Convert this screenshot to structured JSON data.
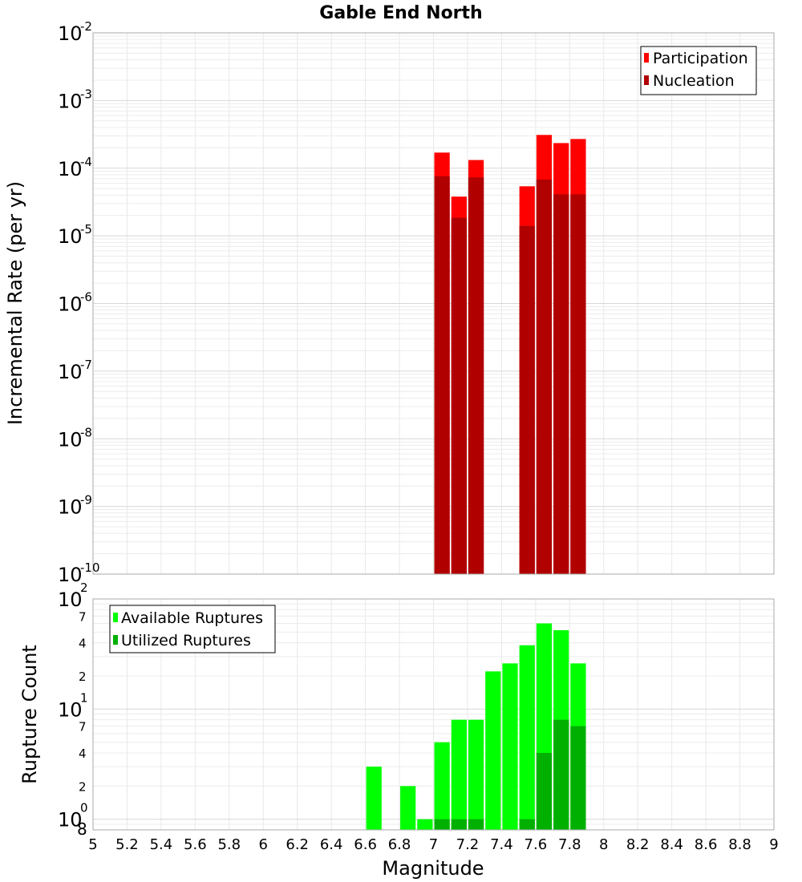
{
  "chart_data": [
    {
      "type": "bar",
      "title": "Gable End North",
      "xlabel": "",
      "ylabel": "Incremental Rate (per yr)",
      "yscale": "log",
      "ylim": [
        1e-10,
        0.01
      ],
      "xlim": [
        5,
        9
      ],
      "bin_width": 0.1,
      "y_tick_base": "10",
      "y_tick_exponents": [
        "-10",
        "-9",
        "-8",
        "-7",
        "-6",
        "-5",
        "-4",
        "-3",
        "-2"
      ],
      "grid": true,
      "legend": "top-right",
      "x": [
        7.05,
        7.15,
        7.25,
        7.55,
        7.65,
        7.75,
        7.85
      ],
      "series": [
        {
          "name": "Participation",
          "color": "#ff0000",
          "values": [
            0.00017,
            3.8e-05,
            0.000132,
            5.4e-05,
            0.00031,
            0.000235,
            0.00027
          ]
        },
        {
          "name": "Nucleation",
          "color": "#b00000",
          "values": [
            7.6e-05,
            1.85e-05,
            7.3e-05,
            1.4e-05,
            6.8e-05,
            4.1e-05,
            4.1e-05
          ]
        }
      ]
    },
    {
      "type": "bar",
      "title": "",
      "xlabel": "Magnitude",
      "ylabel": "Rupture Count",
      "yscale": "log",
      "ylim": [
        0.8,
        100
      ],
      "xlim": [
        5,
        9
      ],
      "bin_width": 0.1,
      "x_ticks": [
        "5",
        "5.2",
        "5.4",
        "5.6",
        "5.8",
        "6",
        "6.2",
        "6.4",
        "6.6",
        "6.8",
        "7",
        "7.2",
        "7.4",
        "7.6",
        "7.8",
        "8",
        "8.2",
        "8.4",
        "8.6",
        "8.8",
        "9"
      ],
      "y_major_ticks": [
        {
          "base": "10",
          "exp": "0"
        },
        {
          "base": "10",
          "exp": "1"
        },
        {
          "base": "10",
          "exp": "2"
        }
      ],
      "y_minor_labels": [
        "8",
        "2",
        "4",
        "7",
        "2",
        "4",
        "7"
      ],
      "grid": true,
      "legend": "top-left",
      "series": [
        {
          "name": "Available Ruptures",
          "color": "#00ff00",
          "x": [
            6.65,
            6.85,
            6.95,
            7.05,
            7.15,
            7.25,
            7.35,
            7.45,
            7.55,
            7.65,
            7.75,
            7.85
          ],
          "values": [
            3,
            2,
            1,
            5,
            8,
            8,
            22,
            26,
            38,
            60,
            52,
            26
          ]
        },
        {
          "name": "Utilized Ruptures",
          "color": "#00b000",
          "x": [
            7.05,
            7.15,
            7.25,
            7.55,
            7.65,
            7.75,
            7.85
          ],
          "values": [
            1,
            1,
            1,
            1,
            4,
            8,
            7
          ]
        }
      ]
    }
  ]
}
